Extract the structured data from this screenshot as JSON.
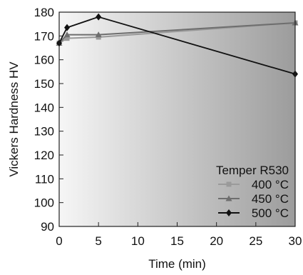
{
  "chart_data": {
    "type": "line",
    "xlabel": "Time (min)",
    "ylabel": "Vickers Hardness HV",
    "xlim": [
      0,
      30
    ],
    "ylim": [
      90,
      180
    ],
    "x_ticks": [
      "0",
      "5",
      "10",
      "15",
      "20",
      "25",
      "30"
    ],
    "y_ticks": [
      "90",
      "100",
      "110",
      "120",
      "130",
      "140",
      "150",
      "160",
      "170",
      "180"
    ],
    "grid": false,
    "legend_title": "Temper R530",
    "legend_position": "bottom-right",
    "series": [
      {
        "name": "400 °C",
        "color": "#9a9a9a",
        "marker": "square",
        "x": [
          0,
          1,
          5,
          30
        ],
        "y": [
          167,
          169,
          169.5,
          175.5
        ]
      },
      {
        "name": "450 °C",
        "color": "#6e6e6e",
        "marker": "triangle",
        "x": [
          0,
          1,
          5,
          30
        ],
        "y": [
          167,
          170.5,
          170.5,
          175.5
        ]
      },
      {
        "name": "500 °C",
        "color": "#111111",
        "marker": "diamond",
        "x": [
          0,
          1,
          5,
          30
        ],
        "y": [
          167,
          173.5,
          178,
          154
        ]
      }
    ]
  }
}
